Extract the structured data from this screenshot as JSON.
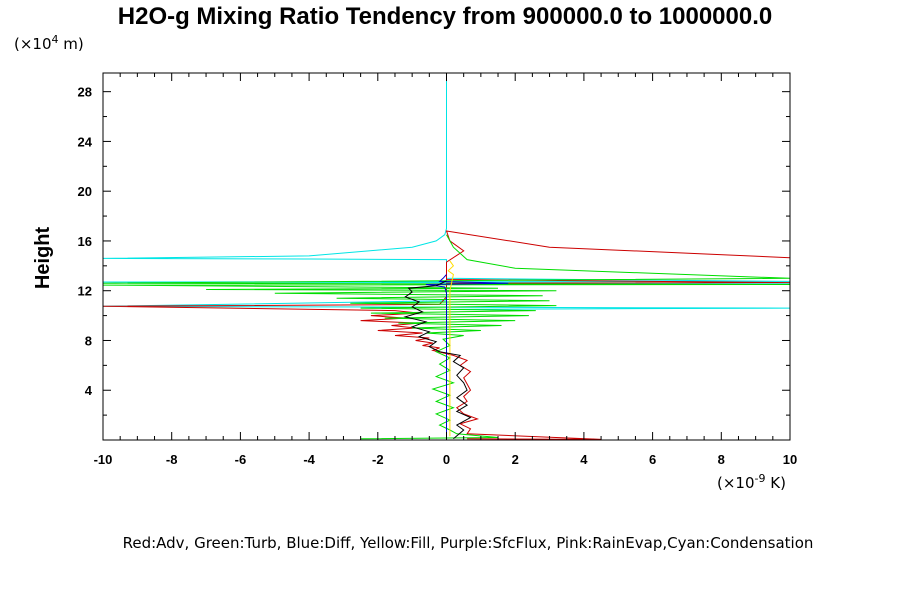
{
  "chart_data": {
    "type": "line",
    "title": "H2O-g Mixing Ratio Tendency from 900000.0 to 1000000.0",
    "ylabel": "Height",
    "y_unit_prefix": "(×10",
    "y_unit_exp": "4",
    "y_unit_suffix": " m)",
    "x_unit_prefix": "(×10",
    "x_unit_exp": "-9",
    "x_unit_suffix": " K)",
    "xlim": [
      -10,
      10
    ],
    "ylim": [
      0,
      29.5
    ],
    "x_ticks": [
      -10,
      -8,
      -6,
      -4,
      -2,
      0,
      2,
      4,
      6,
      8,
      10
    ],
    "y_ticks": [
      4,
      8,
      12,
      16,
      20,
      24,
      28
    ],
    "grid": false,
    "legend_text": "Red:Adv, Green:Turb, Blue:Diff, Yellow:Fill, Purple:SfcFlux, Pink:RainEvap,Cyan:Condensation",
    "colors": {
      "adv": "#cc0000",
      "turb": "#00dd00",
      "diff": "#0000cc",
      "fill": "#ffdd00",
      "condensation": "#00e5e5",
      "total": "#000000"
    },
    "series": [
      {
        "key": "condensation",
        "points": [
          [
            0,
            0
          ],
          [
            0,
            10.5
          ],
          [
            10,
            10.6
          ],
          [
            -10,
            10.75
          ],
          [
            0,
            11.2
          ],
          [
            0,
            12.55
          ],
          [
            10,
            12.6
          ],
          [
            -10,
            12.7
          ],
          [
            10,
            12.75
          ],
          [
            0,
            13.0
          ],
          [
            0,
            14.5
          ],
          [
            -4,
            14.55
          ],
          [
            -10,
            14.6
          ],
          [
            -4,
            14.8
          ],
          [
            -1,
            15.5
          ],
          [
            -0.3,
            16.0
          ],
          [
            -0.05,
            16.5
          ],
          [
            0,
            17
          ],
          [
            0,
            29.5
          ]
        ]
      },
      {
        "key": "adv",
        "points": [
          [
            0.6,
            0.1
          ],
          [
            4.5,
            0.05
          ],
          [
            0.6,
            0.5
          ],
          [
            0.7,
            0.9
          ],
          [
            0.4,
            1.3
          ],
          [
            0.9,
            1.7
          ],
          [
            0.5,
            2.1
          ],
          [
            0.3,
            2.6
          ],
          [
            0.6,
            3.1
          ],
          [
            0.5,
            3.5
          ],
          [
            0.7,
            4.0
          ],
          [
            0.6,
            4.5
          ],
          [
            0.5,
            5.0
          ],
          [
            0.7,
            5.5
          ],
          [
            0.4,
            6.0
          ],
          [
            0.6,
            6.4
          ],
          [
            0.2,
            6.8
          ],
          [
            -0.1,
            7.0
          ],
          [
            -0.4,
            7.2
          ],
          [
            -0.2,
            7.4
          ],
          [
            -0.7,
            7.6
          ],
          [
            -0.4,
            7.8
          ],
          [
            -0.9,
            8.0
          ],
          [
            -0.5,
            8.2
          ],
          [
            -1.5,
            8.4
          ],
          [
            -0.7,
            8.6
          ],
          [
            -2.0,
            8.8
          ],
          [
            -0.9,
            9.0
          ],
          [
            -1.6,
            9.2
          ],
          [
            -0.8,
            9.4
          ],
          [
            -2.5,
            9.6
          ],
          [
            -1.2,
            9.8
          ],
          [
            -2.2,
            10.0
          ],
          [
            -0.8,
            10.2
          ],
          [
            -1.5,
            10.4
          ],
          [
            -10,
            10.75
          ],
          [
            -0.2,
            10.9
          ],
          [
            0,
            11.5
          ],
          [
            0,
            12.6
          ],
          [
            10,
            12.65
          ],
          [
            0,
            12.9
          ],
          [
            0,
            14.3
          ],
          [
            0.5,
            15.2
          ],
          [
            0.1,
            16.0
          ],
          [
            0,
            16.8
          ],
          [
            3,
            15.5
          ],
          [
            10,
            14.65
          ]
        ]
      },
      {
        "key": "turb",
        "points": [
          [
            -2.5,
            0.1
          ],
          [
            1.5,
            0.2
          ],
          [
            0.3,
            0.5
          ],
          [
            0.1,
            0.8
          ],
          [
            -0.2,
            1.2
          ],
          [
            0.1,
            1.6
          ],
          [
            -0.3,
            2.1
          ],
          [
            0.2,
            2.6
          ],
          [
            -0.3,
            3.1
          ],
          [
            0.1,
            3.6
          ],
          [
            -0.4,
            4.1
          ],
          [
            0.2,
            4.6
          ],
          [
            -0.3,
            5.1
          ],
          [
            0.1,
            5.6
          ],
          [
            -0.2,
            6.1
          ],
          [
            0.1,
            6.6
          ],
          [
            -0.3,
            7.1
          ],
          [
            0.1,
            7.6
          ],
          [
            -0.1,
            8.1
          ],
          [
            0.5,
            8.4
          ],
          [
            -0.6,
            8.6
          ],
          [
            1.0,
            8.8
          ],
          [
            -1.0,
            9.0
          ],
          [
            1.6,
            9.2
          ],
          [
            -1.4,
            9.4
          ],
          [
            2.0,
            9.6
          ],
          [
            -1.8,
            9.8
          ],
          [
            2.4,
            10.0
          ],
          [
            -2.2,
            10.2
          ],
          [
            2.6,
            10.4
          ],
          [
            -2.5,
            10.6
          ],
          [
            3.2,
            10.8
          ],
          [
            -2.8,
            11.0
          ],
          [
            3.0,
            11.2
          ],
          [
            -3.2,
            11.4
          ],
          [
            2.8,
            11.6
          ],
          [
            -5.0,
            11.8
          ],
          [
            3.2,
            12.0
          ],
          [
            -7.0,
            12.1
          ],
          [
            1.5,
            12.2
          ],
          [
            -10,
            12.45
          ],
          [
            10,
            12.5
          ],
          [
            -10,
            12.6
          ],
          [
            10,
            13.0
          ],
          [
            2,
            13.8
          ],
          [
            0.6,
            14.5
          ],
          [
            0.2,
            15.5
          ],
          [
            0,
            16.5
          ]
        ]
      },
      {
        "key": "diff",
        "points": [
          [
            0,
            0
          ],
          [
            0,
            11.8
          ],
          [
            -0.05,
            12.3
          ],
          [
            -0.6,
            12.5
          ],
          [
            1.8,
            12.6
          ],
          [
            -0.2,
            12.75
          ],
          [
            -0.1,
            13.0
          ],
          [
            0,
            13.3
          ]
        ]
      },
      {
        "key": "fill",
        "points": [
          [
            0.1,
            0.3
          ],
          [
            0.1,
            12.0
          ],
          [
            0.2,
            13.3
          ],
          [
            0.05,
            13.6
          ],
          [
            0.2,
            14.0
          ],
          [
            0.1,
            14.4
          ]
        ]
      },
      {
        "key": "total",
        "points": [
          [
            0.2,
            0.1
          ],
          [
            0.5,
            0.8
          ],
          [
            0.3,
            1.2
          ],
          [
            0.7,
            1.8
          ],
          [
            0.3,
            2.3
          ],
          [
            0.6,
            2.8
          ],
          [
            0.3,
            3.4
          ],
          [
            0.6,
            4.0
          ],
          [
            0.5,
            4.6
          ],
          [
            0.3,
            5.2
          ],
          [
            0.5,
            5.8
          ],
          [
            0.2,
            6.3
          ],
          [
            0.4,
            6.8
          ],
          [
            -0.2,
            7.1
          ],
          [
            -0.5,
            7.5
          ],
          [
            -0.3,
            7.9
          ],
          [
            -0.8,
            8.3
          ],
          [
            -0.5,
            8.7
          ],
          [
            -1.0,
            9.1
          ],
          [
            -0.6,
            9.5
          ],
          [
            -1.2,
            9.9
          ],
          [
            -0.7,
            10.3
          ],
          [
            -1.0,
            10.7
          ],
          [
            -0.8,
            11.1
          ],
          [
            -1.2,
            11.5
          ],
          [
            -1.0,
            11.9
          ],
          [
            -1.1,
            12.2
          ],
          [
            -0.3,
            12.4
          ],
          [
            0,
            12.8
          ]
        ]
      }
    ]
  }
}
